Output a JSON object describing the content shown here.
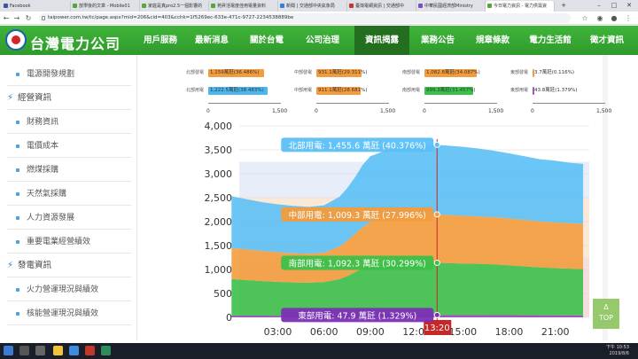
{
  "browser": {
    "tabs": [
      {
        "label": "Facebook",
        "color": "#3b5998"
      },
      {
        "label": "放學後的文章 - Mobile01",
        "color": "#58a63a"
      },
      {
        "label": "家庭是真pro2.5一個影響的",
        "color": "#58a63a"
      },
      {
        "label": "苑昇活電度佳用電量資料",
        "color": "#58a63a"
      },
      {
        "label": "新聞 | 交通部中央氣象局",
        "color": "#3b7bd4"
      },
      {
        "label": "臺灣電網資訊 | 交通部中",
        "color": "#c0392b"
      },
      {
        "label": "中華民國經濟部Ministry",
        "color": "#7a4fbf"
      },
      {
        "label": "今日電力資訊 - 電力供需資",
        "color": "#58a63a"
      }
    ],
    "new_tab": "+",
    "url": "taipower.com.tw/tc/page.aspx?mid=206&cid=403&cchk=1f5269ec-633e-471c-9727-2234538889be"
  },
  "header": {
    "logo_text": "台灣電力公司",
    "menu": [
      "用戶服務",
      "最新消息",
      "關於台電",
      "公司治理",
      "資訊揭露",
      "業務公告",
      "規章條款",
      "電力生活館",
      "徵才資訊"
    ],
    "active_menu": "資訊揭露"
  },
  "sidebar": {
    "items": [
      {
        "kind": "item",
        "label": "電源開發規劃"
      },
      {
        "kind": "head",
        "label": "經營資訊"
      },
      {
        "kind": "item",
        "label": "財務資訊"
      },
      {
        "kind": "item",
        "label": "電價成本"
      },
      {
        "kind": "item",
        "label": "燃煤採購"
      },
      {
        "kind": "item",
        "label": "天然氣採購"
      },
      {
        "kind": "item",
        "label": "人力資源發展"
      },
      {
        "kind": "item",
        "label": "重要電業經營績效"
      },
      {
        "kind": "head",
        "label": "發電資訊"
      },
      {
        "kind": "item",
        "label": "火力營運現況與績效"
      },
      {
        "kind": "item",
        "label": "核能營運現況與績效"
      }
    ]
  },
  "mini_bars": [
    {
      "rows": [
        {
          "label": "北部發電",
          "text": "1,159萬瓩(36.486%)",
          "color": "#f39c3d",
          "value": 1159.0
        },
        {
          "label": "北部用電",
          "text": "1,222.5萬瓩(38.483%)",
          "color": "#4db6ec",
          "value": 1222.5
        }
      ]
    },
    {
      "rows": [
        {
          "label": "中部發電",
          "text": "931.1萬瓩(29.311%)",
          "color": "#f39c3d",
          "value": 931.1
        },
        {
          "label": "中部用電",
          "text": "911.1萬瓩(28.681%)",
          "color": "#f39c3d",
          "value": 911.1
        }
      ]
    },
    {
      "rows": [
        {
          "label": "南部發電",
          "text": "1,082.8萬瓩(34.087%)",
          "color": "#f39c3d",
          "value": 1082.8
        },
        {
          "label": "南部用電",
          "text": "999.3萬瓩(31.457%)",
          "color": "#3cc04a",
          "value": 999.3
        }
      ]
    },
    {
      "rows": [
        {
          "label": "東部發電",
          "text": "3.7萬瓩(0.116%)",
          "color": "#f39c3d",
          "value": 3.7
        },
        {
          "label": "東部用電",
          "text": "43.8萬瓩(1.379%)",
          "color": "#9b59b6",
          "value": 43.8
        }
      ]
    }
  ],
  "mini_axis": [
    "0",
    "1,500"
  ],
  "chart_data": {
    "type": "area",
    "xlabel": "",
    "ylabel": "",
    "ylim": [
      0,
      4000
    ],
    "yticks": [
      "0",
      "500",
      "1,000",
      "1,500",
      "2,000",
      "2,500",
      "3,000",
      "3,500",
      "4,000"
    ],
    "xticks": [
      "03:00",
      "06:00",
      "09:00",
      "12:00",
      "15:00",
      "18:00",
      "21:00"
    ],
    "x_hours": [
      0,
      1,
      2,
      3,
      4,
      5,
      6,
      7,
      7.5,
      8,
      8.5,
      9,
      10,
      11,
      12,
      13,
      13.3,
      14,
      15,
      16,
      17,
      18,
      19,
      20,
      21,
      22,
      22.8
    ],
    "series": [
      {
        "name": "東部用電",
        "color": "#9b59b6",
        "values": [
          40,
          38,
          36,
          35,
          34,
          34,
          35,
          38,
          40,
          42,
          44,
          45,
          46,
          47,
          47,
          48,
          47.9,
          48,
          48,
          48,
          47,
          46,
          45,
          44,
          42,
          41,
          40
        ]
      },
      {
        "name": "南部用電",
        "color": "#3cc04a",
        "values": [
          760,
          740,
          720,
          705,
          695,
          690,
          700,
          760,
          820,
          900,
          980,
          1040,
          1070,
          1085,
          1080,
          1090,
          1092.3,
          1085,
          1075,
          1070,
          1060,
          1040,
          1020,
          1000,
          985,
          975,
          970
        ]
      },
      {
        "name": "中部用電",
        "color": "#f39c3d",
        "values": [
          650,
          640,
          630,
          620,
          610,
          605,
          615,
          680,
          740,
          800,
          860,
          900,
          950,
          980,
          990,
          1000,
          1009.3,
          1005,
          1000,
          990,
          985,
          980,
          970,
          960,
          955,
          950,
          945
        ]
      },
      {
        "name": "北部用電",
        "color": "#5bc0f5",
        "values": [
          1080,
          1050,
          1020,
          1000,
          990,
          980,
          990,
          1040,
          1100,
          1180,
          1300,
          1380,
          1420,
          1440,
          1440,
          1450,
          1455.6,
          1450,
          1440,
          1420,
          1390,
          1360,
          1330,
          1300,
          1290,
          1260,
          1250
        ]
      }
    ],
    "current_time": "13:20",
    "current_x": 13.33,
    "bands": [
      {
        "from": 0,
        "to": 1250,
        "color": "#f4dede"
      },
      {
        "from": 1250,
        "to": 2500,
        "color": "#fbe9d8"
      },
      {
        "from": 2500,
        "to": 3250,
        "color": "#e7edf9"
      }
    ],
    "tooltips": [
      {
        "text": "北部用電: 1,455.6 萬瓩 (40.376%)",
        "color": "#5bc0f5",
        "value": 3605
      },
      {
        "text": "中部用電: 1,009.3 萬瓩 (27.996%)",
        "color": "#f39c3d",
        "value": 2150
      },
      {
        "text": "南部用電: 1,092.3 萬瓩 (30.299%)",
        "color": "#3cc04a",
        "value": 1140
      },
      {
        "text": "東部用電: 47.9 萬瓩 (1.329%)",
        "color": "#7b2fb5",
        "value": 48
      }
    ]
  },
  "back_to_top": {
    "arrow": "Δ",
    "label": "TOP"
  },
  "taskbar": {
    "time": "下午 10:53",
    "date": "2019/8/6"
  }
}
